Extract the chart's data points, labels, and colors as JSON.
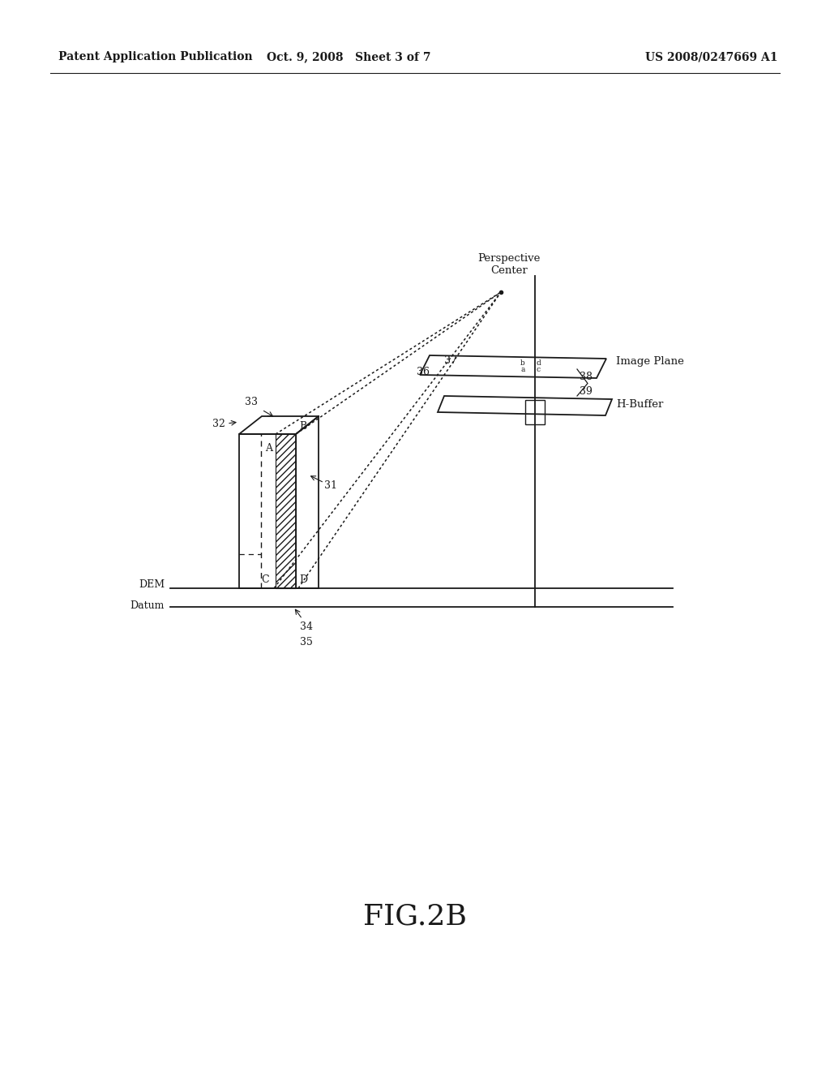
{
  "header_left": "Patent Application Publication",
  "header_mid": "Oct. 9, 2008   Sheet 3 of 7",
  "header_right": "US 2008/0247669 A1",
  "figure_label": "FIG.2B",
  "background_color": "#ffffff",
  "line_color": "#1a1a1a",
  "labels": {
    "perspective_center": "Perspective\nCenter",
    "image_plane": "Image Plane",
    "h_buffer": "H-Buffer",
    "dem": "DEM",
    "datum": "Datum"
  }
}
